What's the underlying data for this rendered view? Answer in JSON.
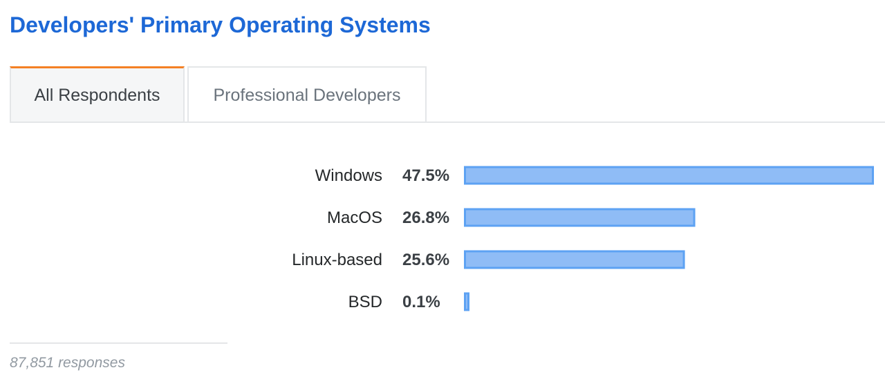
{
  "title": "Developers' Primary Operating Systems",
  "tabs": [
    {
      "label": "All Respondents",
      "active": true
    },
    {
      "label": "Professional Developers",
      "active": false
    }
  ],
  "colors": {
    "title": "#1d68d6",
    "tab_accent": "#f48024",
    "bar_fill": "#8fbcf6",
    "bar_stroke": "#5da2f3"
  },
  "chart_data": {
    "type": "bar",
    "orientation": "horizontal",
    "categories": [
      "Windows",
      "MacOS",
      "Linux-based",
      "BSD"
    ],
    "values": [
      47.5,
      26.8,
      25.6,
      0.1
    ],
    "value_labels": [
      "47.5%",
      "26.8%",
      "25.6%",
      "0.1%"
    ],
    "unit": "%"
  },
  "footer": {
    "responses": "87,851 responses"
  }
}
